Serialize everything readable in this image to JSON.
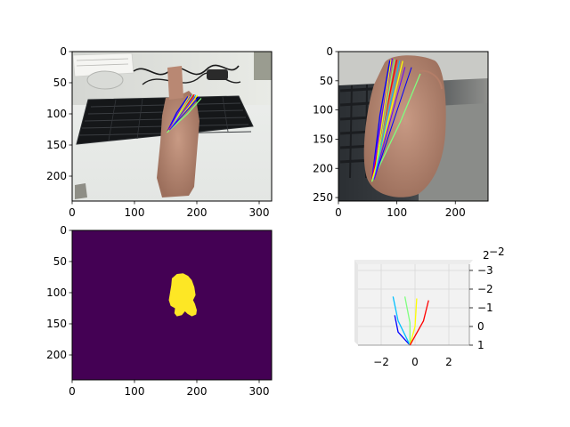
{
  "colors": {
    "finger_lines": [
      "#0000ff",
      "#6a00ff",
      "#ff0000",
      "#ffff00",
      "#7fff7f",
      "#00c0ff"
    ],
    "mask_background": "#440154",
    "mask_foreground": "#fde725",
    "axis": "#000000",
    "pane_3d": "#f2f2f2",
    "grid_3d": "#d9d9d9"
  },
  "chart_data": [
    {
      "type": "image",
      "content": "RGB photo of a hand above a keyboard with 2D hand-keypoint skeleton overlay",
      "xlim": [
        0,
        320
      ],
      "ylim": [
        240,
        0
      ],
      "x_ticks": [
        "0",
        "100",
        "200",
        "300"
      ],
      "y_ticks": [
        "0",
        "50",
        "100",
        "150",
        "200"
      ],
      "x_tick_values": [
        0,
        100,
        200,
        300
      ],
      "y_tick_values": [
        0,
        50,
        100,
        150,
        200
      ],
      "skeleton_root": [
        152,
        130
      ],
      "fingertips": [
        [
          186,
          72
        ],
        [
          190,
          70
        ],
        [
          196,
          69
        ],
        [
          201,
          70
        ],
        [
          207,
          75
        ]
      ]
    },
    {
      "type": "image",
      "content": "cropped close-up of the hand with 2D keypoint skeleton overlay",
      "xlim": [
        0,
        256
      ],
      "ylim": [
        256,
        0
      ],
      "x_ticks": [
        "0",
        "100",
        "200"
      ],
      "y_ticks": [
        "0",
        "50",
        "100",
        "150",
        "200",
        "250"
      ],
      "x_tick_values": [
        0,
        100,
        200
      ],
      "y_tick_values": [
        0,
        50,
        100,
        150,
        200,
        250
      ],
      "skeleton_root": [
        57,
        223
      ],
      "fingertips": [
        [
          88,
          15
        ],
        [
          92,
          12
        ],
        [
          100,
          14
        ],
        [
          110,
          16
        ],
        [
          140,
          38
        ]
      ]
    },
    {
      "type": "heatmap",
      "content": "binary hand segmentation mask",
      "xlim": [
        0,
        320
      ],
      "ylim": [
        240,
        0
      ],
      "x_ticks": [
        "0",
        "100",
        "200",
        "300"
      ],
      "y_ticks": [
        "0",
        "50",
        "100",
        "150",
        "200"
      ],
      "x_tick_values": [
        0,
        100,
        200,
        300
      ],
      "y_tick_values": [
        0,
        50,
        100,
        150,
        200
      ],
      "mask_outline": [
        [
          160,
          77
        ],
        [
          168,
          70
        ],
        [
          178,
          69
        ],
        [
          186,
          73
        ],
        [
          192,
          80
        ],
        [
          196,
          91
        ],
        [
          198,
          104
        ],
        [
          194,
          112
        ],
        [
          197,
          118
        ],
        [
          200,
          128
        ],
        [
          199,
          135
        ],
        [
          192,
          138
        ],
        [
          185,
          134
        ],
        [
          181,
          130
        ],
        [
          176,
          136
        ],
        [
          168,
          138
        ],
        [
          164,
          133
        ],
        [
          165,
          125
        ],
        [
          158,
          121
        ],
        [
          155,
          112
        ],
        [
          157,
          100
        ],
        [
          159,
          88
        ]
      ]
    },
    {
      "type": "line",
      "content": "3D hand skeleton",
      "x_ticks": [
        "−2",
        "0",
        "2"
      ],
      "x_tick_values": [
        -2,
        0,
        2
      ],
      "y_ticks": [
        "−3",
        "−2",
        "−1",
        "0",
        "1"
      ],
      "y_tick_values": [
        -3,
        -2,
        -1,
        0,
        1
      ],
      "z_ticks": [
        "2",
        "−2"
      ],
      "series": [
        {
          "x": [
            -0.3,
            -1.0,
            -1.2
          ],
          "y": [
            1.0,
            0.3,
            -0.6
          ]
        },
        {
          "x": [
            -0.3,
            -1.0,
            -1.3
          ],
          "y": [
            1.0,
            -0.3,
            -1.6
          ]
        },
        {
          "x": [
            -0.3,
            -0.3,
            -0.6
          ],
          "y": [
            1.0,
            -0.2,
            -1.6
          ]
        },
        {
          "x": [
            -0.3,
            0.0,
            0.1
          ],
          "y": [
            1.0,
            0.0,
            -1.5
          ]
        },
        {
          "x": [
            -0.3,
            0.5,
            0.8
          ],
          "y": [
            1.0,
            -0.3,
            -1.4
          ]
        }
      ]
    }
  ]
}
